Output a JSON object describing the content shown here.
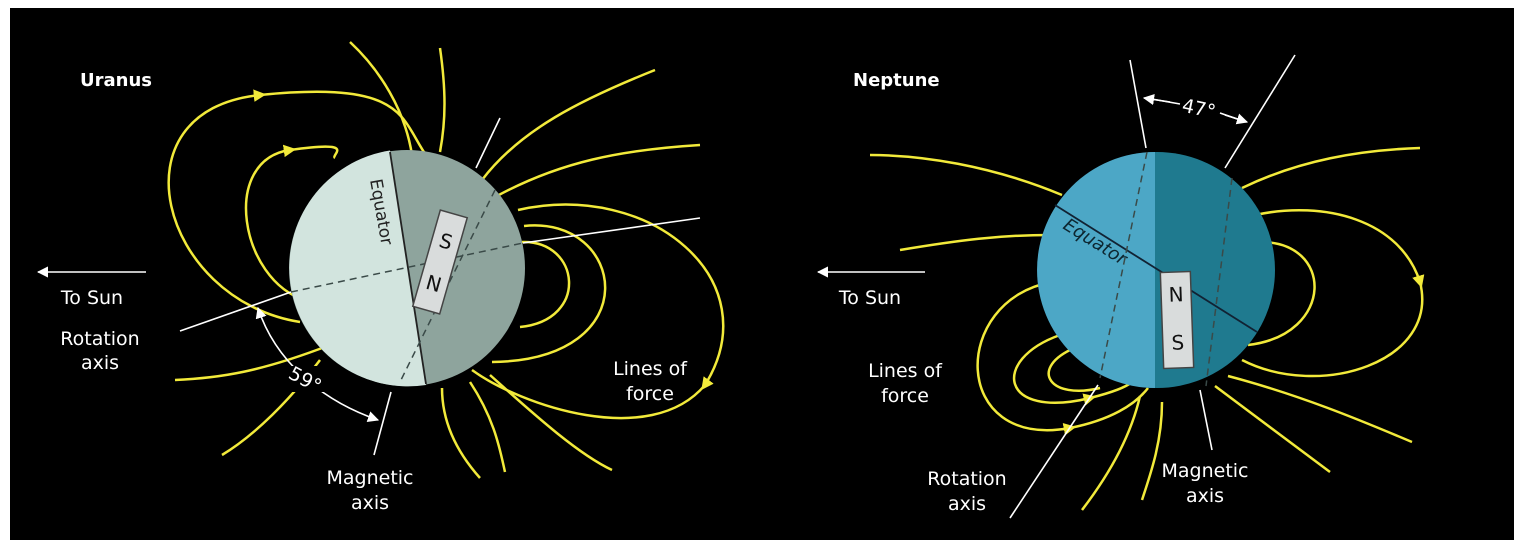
{
  "panels": [
    {
      "title": "Uranus",
      "to_sun": "To Sun",
      "rotation_axis": [
        "Rotation",
        "axis"
      ],
      "magnetic_axis": [
        "Magnetic",
        "axis"
      ],
      "lines_of_force": [
        "Lines of",
        "force"
      ],
      "equator": "Equator",
      "magnet_top": "S",
      "magnet_bottom": "N",
      "angle": "59°"
    },
    {
      "title": "Neptune",
      "to_sun": "To Sun",
      "rotation_axis": [
        "Rotation",
        "axis"
      ],
      "magnetic_axis": [
        "Magnetic",
        "axis"
      ],
      "lines_of_force": [
        "Lines of",
        "force"
      ],
      "equator": "Equator",
      "magnet_top": "N",
      "magnet_bottom": "S",
      "angle": "47°"
    }
  ]
}
